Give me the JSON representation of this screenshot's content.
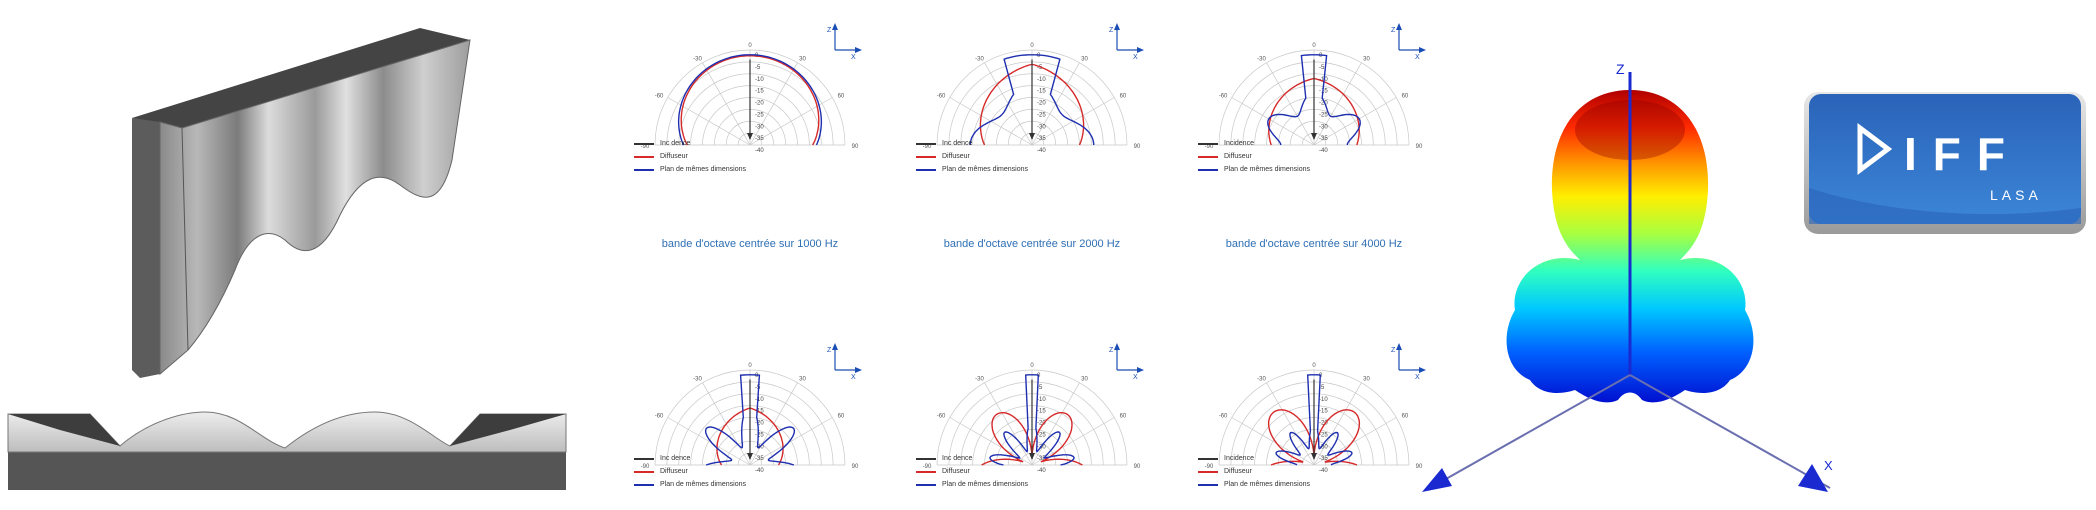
{
  "polar": {
    "axis_z": "Z",
    "axis_x": "X",
    "angle_labels": [
      "0",
      "30",
      "60",
      "90",
      "-30",
      "-60",
      "-90"
    ],
    "radial_labels": [
      "0",
      "-5",
      "-10",
      "-15",
      "-20",
      "-25",
      "-30",
      "-35",
      "-40"
    ],
    "colors": {
      "incidence": "#333333",
      "diffuser": "#d62a2a",
      "plan": "#1e2fb0",
      "axis": "#1a4db5"
    }
  },
  "legends": [
    {
      "incidence": "Inc dence",
      "diffuser": "Diffuseur",
      "plan": "Plan de mêmes dimensions"
    },
    {
      "incidence": "Inc dence",
      "diffuser": "Diffuseur",
      "plan": "Plan de mêmes dimensions"
    },
    {
      "incidence": "Incidence",
      "diffuser": "Diffuseur",
      "plan": "Plan de mêmes dimensions"
    },
    {
      "incidence": "Inc dence",
      "diffuser": "Diffuseur",
      "plan": "Plan de mêmes dimensions"
    },
    {
      "incidence": "Inc dence",
      "diffuser": "Diffuseur",
      "plan": "Plan de mêmes dimensions"
    },
    {
      "incidence": "Incidence",
      "diffuser": "Diffuseur",
      "plan": "Plan de mêmes dimensions"
    }
  ],
  "captions": [
    "bande d'octave centrée sur 1000 Hz",
    "bande d'octave centrée sur 2000 Hz",
    "bande d'octave centrée sur 4000 Hz"
  ],
  "balloon": {
    "axis_z": "Z",
    "axis_x": "X"
  },
  "logo": {
    "brand": "DIFF",
    "sub": "LASA",
    "color": "#2f6fc4"
  }
}
